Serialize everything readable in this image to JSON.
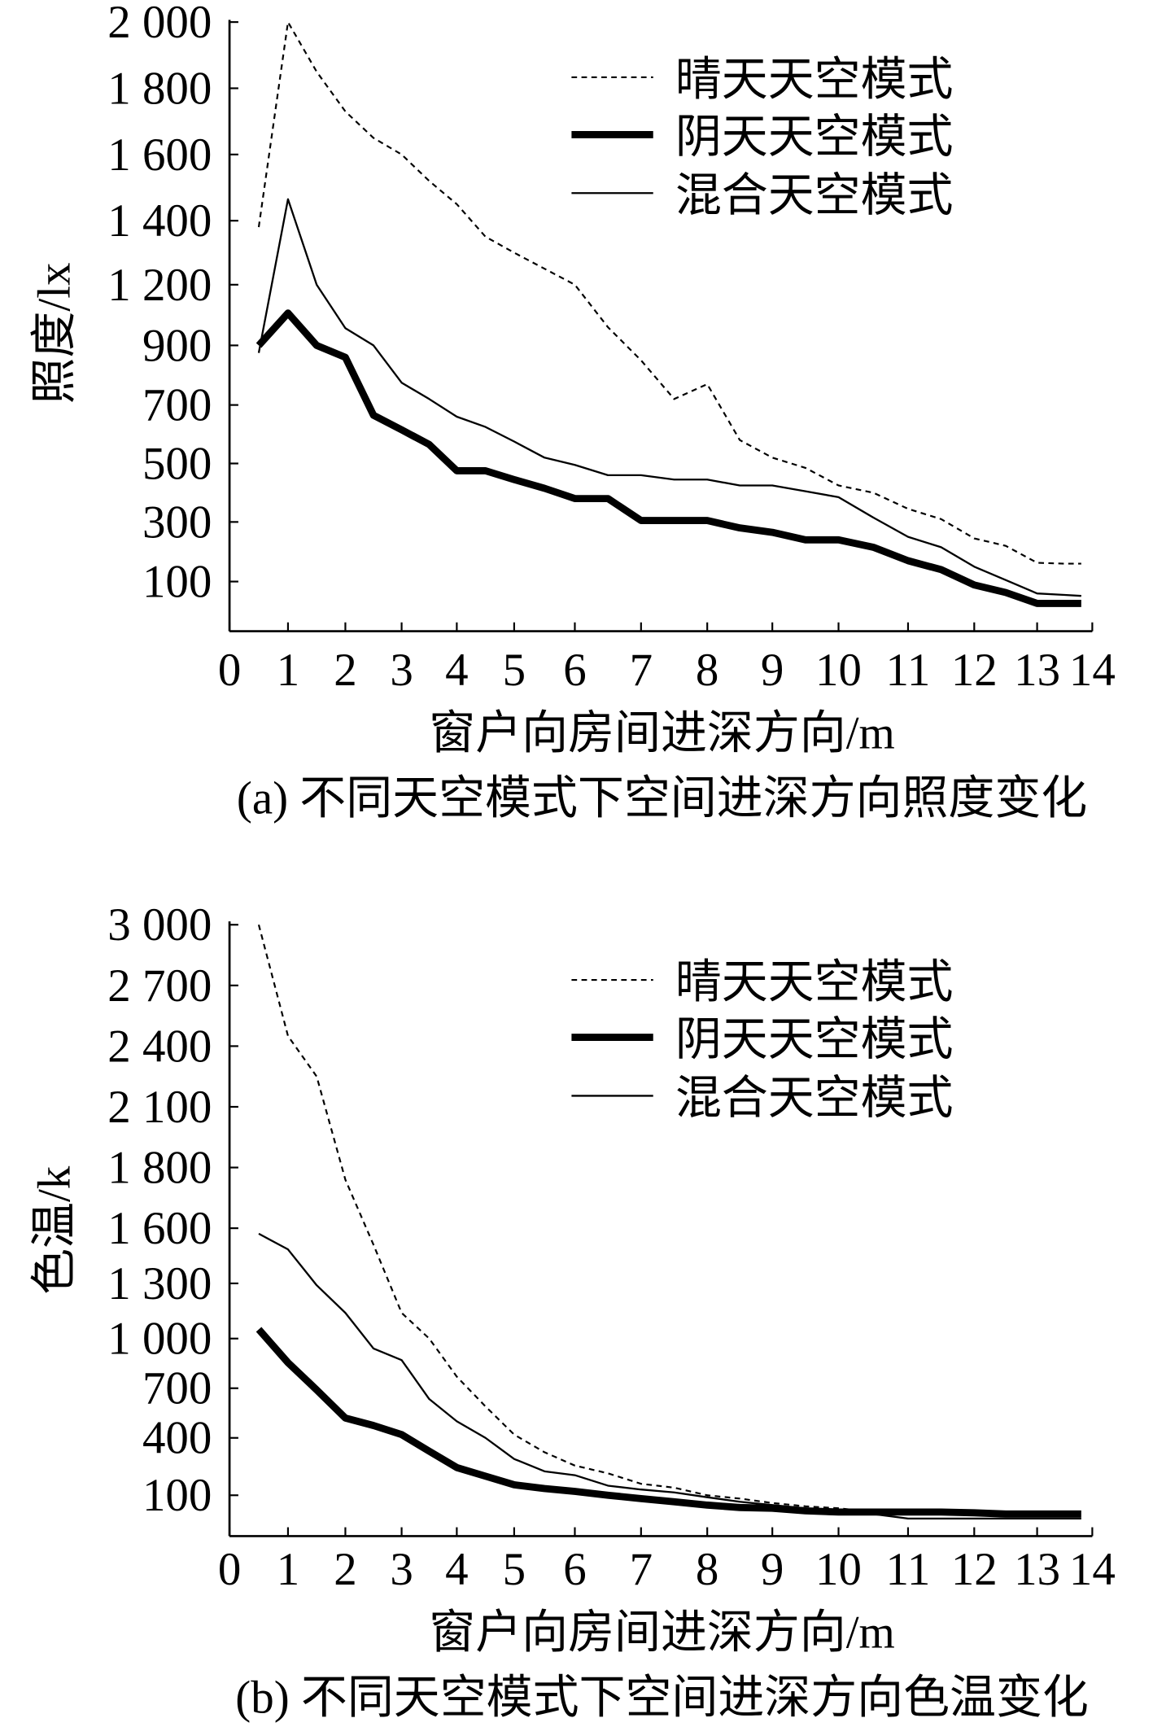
{
  "chart_data": [
    {
      "type": "line",
      "caption": "(a) 不同天空模式下空间进深方向照度变化",
      "xlabel": "窗户向房间进深方向/m",
      "ylabel": "照度/lx",
      "xlim": [
        0,
        14
      ],
      "ylim": [
        0,
        2000
      ],
      "y_scale": "nonuniform",
      "grid": false,
      "legend": "top-right",
      "xticks": [
        0,
        1,
        2,
        3,
        4,
        5,
        6,
        7,
        8,
        9,
        10,
        11,
        12,
        13,
        14
      ],
      "xtick_labels": [
        "0",
        "1",
        "2",
        "3",
        "4",
        "5",
        "6",
        "7",
        "8",
        "9",
        "10",
        "11",
        "12",
        "13",
        "14"
      ],
      "yticks": [
        2000,
        1800,
        1600,
        1400,
        1200,
        900,
        700,
        500,
        300,
        100
      ],
      "ytick_labels": [
        "2 000",
        "1 800",
        "1 600",
        "1 400",
        "1 200",
        "900",
        "700",
        "500",
        "300",
        "100"
      ],
      "x": [
        0.5,
        1,
        1.5,
        2,
        2.5,
        3,
        3.5,
        4,
        4.5,
        5,
        5.5,
        6,
        6.5,
        7,
        7.5,
        8,
        8.5,
        9,
        9.5,
        10,
        10.5,
        11,
        11.5,
        12,
        12.5,
        13,
        13.5,
        13.8
      ],
      "series": [
        {
          "name": "晴天天空模式",
          "line": "dashed",
          "color": "#000000",
          "values": [
            1380,
            2000,
            1850,
            1730,
            1650,
            1600,
            1520,
            1450,
            1350,
            1300,
            1250,
            1200,
            990,
            850,
            720,
            770,
            580,
            520,
            485,
            425,
            400,
            345,
            310,
            245,
            220,
            163,
            160,
            160
          ]
        },
        {
          "name": "阴天天空模式",
          "line": "bold",
          "color": "#000000",
          "values": [
            900,
            1060,
            900,
            860,
            665,
            615,
            565,
            475,
            475,
            445,
            415,
            380,
            380,
            305,
            305,
            305,
            280,
            265,
            240,
            240,
            215,
            170,
            140,
            93,
            78,
            56,
            56,
            56
          ]
        },
        {
          "name": "混合天空模式",
          "line": "thin",
          "color": "#000000",
          "values": [
            875,
            1465,
            1200,
            985,
            900,
            775,
            720,
            660,
            625,
            575,
            520,
            495,
            460,
            460,
            445,
            445,
            425,
            425,
            405,
            385,
            315,
            250,
            215,
            150,
            105,
            76,
            73,
            71
          ]
        }
      ]
    },
    {
      "type": "line",
      "caption": "(b) 不同天空模式下空间进深方向色温变化",
      "xlabel": "窗户向房间进深方向/m",
      "ylabel": "色温/k",
      "xlim": [
        0,
        14
      ],
      "ylim": [
        0,
        3000
      ],
      "y_scale": "nonuniform",
      "grid": false,
      "legend": "top-right",
      "xticks": [
        0,
        1,
        2,
        3,
        4,
        5,
        6,
        7,
        8,
        9,
        10,
        11,
        12,
        13,
        14
      ],
      "xtick_labels": [
        "0",
        "1",
        "2",
        "3",
        "4",
        "5",
        "6",
        "7",
        "8",
        "9",
        "10",
        "11",
        "12",
        "13",
        "14"
      ],
      "yticks": [
        3000,
        2700,
        2400,
        2100,
        1800,
        1600,
        1300,
        1000,
        700,
        400,
        100
      ],
      "ytick_labels": [
        "3 000",
        "2 700",
        "2 400",
        "2 100",
        "1 800",
        "1 600",
        "1 300",
        "1 000",
        "700",
        "400",
        "100"
      ],
      "x": [
        0.5,
        1,
        1.5,
        2,
        2.5,
        3,
        3.5,
        4,
        4.5,
        5,
        5.5,
        6,
        6.5,
        7,
        7.5,
        8,
        8.5,
        9,
        9.5,
        10,
        10.5,
        11,
        11.5,
        12,
        12.5,
        13,
        13.5,
        13.8
      ],
      "series": [
        {
          "name": "晴天天空模式",
          "line": "dashed",
          "color": "#000000",
          "values": [
            3000,
            2450,
            2250,
            1760,
            1510,
            1140,
            1000,
            770,
            590,
            420,
            325,
            255,
            215,
            160,
            140,
            100,
            92,
            81,
            73,
            68,
            59,
            54,
            54,
            51,
            51,
            49,
            49,
            49
          ]
        },
        {
          "name": "阴天天空模式",
          "line": "bold",
          "color": "#000000",
          "values": [
            1050,
            855,
            690,
            520,
            475,
            420,
            330,
            245,
            200,
            155,
            135,
            120,
            100,
            92,
            84,
            76,
            70,
            68,
            62,
            59,
            59,
            59,
            59,
            57,
            54,
            54,
            54,
            54
          ]
        },
        {
          "name": "混合天空模式",
          "line": "thin",
          "color": "#000000",
          "values": [
            1570,
            1485,
            1290,
            1140,
            940,
            870,
            635,
            500,
            400,
            290,
            225,
            205,
            150,
            130,
            115,
            95,
            84,
            76,
            68,
            57,
            54,
            43,
            43,
            43,
            43,
            43,
            43,
            43
          ]
        }
      ]
    }
  ]
}
